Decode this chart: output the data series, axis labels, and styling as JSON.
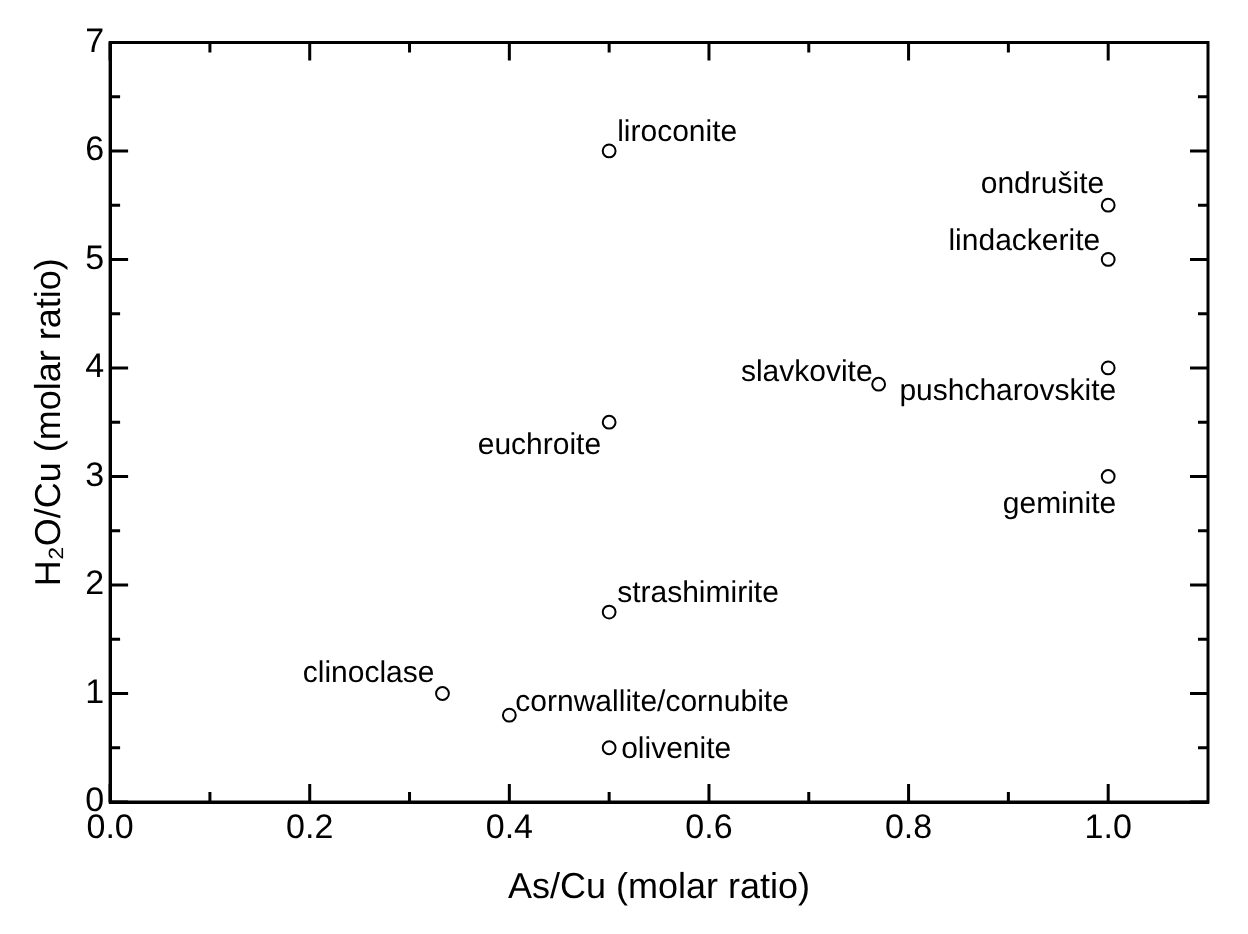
{
  "chart_data": {
    "type": "scatter",
    "xlabel": "As/Cu (molar ratio)",
    "ylabel": "H₂O/Cu (molar ratio)",
    "x": [
      0.5,
      1.0,
      1.0,
      0.77,
      1.0,
      0.5,
      1.0,
      0.5,
      0.333,
      0.4,
      0.5
    ],
    "series": [
      {
        "color": "#000000",
        "values": [
          6,
          5.5,
          5,
          3.85,
          4,
          3.5,
          3,
          1.75,
          1,
          0.8,
          0.5
        ]
      }
    ],
    "marker": "circle",
    "grid": false,
    "legend": false,
    "xlim": [
      0,
      1.1
    ],
    "xticks": [
      {
        "value": 0,
        "label": "0.0"
      },
      {
        "value": 0.1,
        "label": null
      },
      {
        "value": 0.2,
        "label": "0.2"
      },
      {
        "value": 0.3,
        "label": null
      },
      {
        "value": 0.4,
        "label": "0.4"
      },
      {
        "value": 0.5,
        "label": null
      },
      {
        "value": 0.6,
        "label": "0.6"
      },
      {
        "value": 0.7,
        "label": null
      },
      {
        "value": 0.8,
        "label": "0.8"
      },
      {
        "value": 0.9,
        "label": null
      },
      {
        "value": 1,
        "label": "1.0"
      }
    ],
    "ylim": [
      0,
      7
    ],
    "yticks": [
      0,
      {
        "value": 0.5,
        "label": null
      },
      1,
      {
        "value": 1.5,
        "label": null
      },
      2,
      {
        "value": 2.5,
        "label": null
      },
      3,
      {
        "value": 3.5,
        "label": null
      },
      4,
      {
        "value": 4.5,
        "label": null
      },
      5,
      {
        "value": 5.5,
        "label": null
      },
      6,
      {
        "value": 6.5,
        "label": null
      },
      7
    ],
    "annotations": [
      {
        "text": "liroconite",
        "x": 0.5,
        "y": 6
      },
      {
        "text": "ondrušite",
        "x": 1.0,
        "y": 5.5
      },
      {
        "text": "lindackerite",
        "x": 1.0,
        "y": 5
      },
      {
        "text": "slavkovite",
        "x": 0.77,
        "y": 3.85
      },
      {
        "text": "pushcharovskite",
        "x": 1.0,
        "y": 4
      },
      {
        "text": "euchroite",
        "x": 0.5,
        "y": 3.5
      },
      {
        "text": "geminite",
        "x": 1.0,
        "y": 3
      },
      {
        "text": "strashimirite",
        "x": 0.5,
        "y": 1.75
      },
      {
        "text": "clinoclase",
        "x": 0.333,
        "y": 1
      },
      {
        "text": "cornwallite/cornubite",
        "x": 0.4,
        "y": 0.8
      },
      {
        "text": "olivenite",
        "x": 0.5,
        "y": 0.5
      }
    ]
  }
}
